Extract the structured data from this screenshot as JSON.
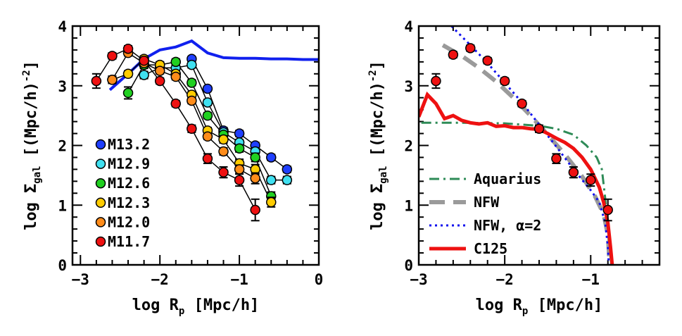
{
  "chart_data": [
    {
      "type": "scatter",
      "xlabel": "log R",
      "xlabel_sub": "p",
      "xlabel_units": "[Mpc/h]",
      "ylabel": "log Σ",
      "ylabel_sub": "gal",
      "ylabel_units": "[(Mpc/h)",
      "ylabel_sup": "-2",
      "ylabel_close": "]",
      "xlim": [
        -3.1,
        0
      ],
      "ylim": [
        0,
        4
      ],
      "xticks": [
        -3,
        -2,
        -1,
        0
      ],
      "xtick_labels": [
        "−3",
        "−2",
        "−1",
        "0"
      ],
      "yticks": [
        0,
        1,
        2,
        3,
        4
      ],
      "ytick_labels": [
        "0",
        "1",
        "2",
        "3",
        "4"
      ],
      "legend_position": "bottom-left",
      "series": [
        {
          "name": "M13.2",
          "color": "#1f3fff",
          "x": [
            -1.6,
            -1.4,
            -1.2,
            -1.0,
            -0.8,
            -0.6,
            -0.4
          ],
          "y": [
            3.45,
            2.95,
            2.25,
            2.2,
            2.0,
            1.8,
            1.6
          ],
          "err": [
            0.04,
            0.04,
            0.05,
            0.05,
            0.05,
            0.05,
            0.05
          ]
        },
        {
          "name": "M12.9",
          "color": "#40e0f0",
          "x": [
            -2.2,
            -2.0,
            -1.8,
            -1.6,
            -1.4,
            -1.2,
            -1.0,
            -0.8,
            -0.6,
            -0.4
          ],
          "y": [
            3.18,
            3.3,
            3.3,
            3.35,
            2.72,
            2.22,
            2.05,
            1.9,
            1.42,
            1.42
          ],
          "err": [
            0.06,
            0.05,
            0.05,
            0.05,
            0.05,
            0.05,
            0.05,
            0.06,
            0.06,
            0.06
          ]
        },
        {
          "name": "M12.6",
          "color": "#20d020",
          "x": [
            -2.4,
            -2.2,
            -2.0,
            -1.8,
            -1.6,
            -1.4,
            -1.2,
            -1.0,
            -0.8,
            -0.6
          ],
          "y": [
            2.88,
            3.35,
            3.35,
            3.4,
            3.05,
            2.5,
            2.18,
            1.95,
            1.8,
            1.15
          ],
          "err": [
            0.1,
            0.06,
            0.05,
            0.05,
            0.05,
            0.05,
            0.05,
            0.06,
            0.07,
            0.07
          ]
        },
        {
          "name": "M12.3",
          "color": "#ffcc00",
          "x": [
            -2.6,
            -2.4,
            -2.2,
            -2.0,
            -1.8,
            -1.6,
            -1.4,
            -1.2,
            -1.0,
            -0.8,
            -0.6
          ],
          "y": [
            3.1,
            3.2,
            3.45,
            3.35,
            3.2,
            2.85,
            2.25,
            2.1,
            1.7,
            1.6,
            1.05
          ],
          "err": [
            0.06,
            0.05,
            0.05,
            0.05,
            0.05,
            0.05,
            0.05,
            0.06,
            0.07,
            0.08,
            0.08
          ]
        },
        {
          "name": "M12.0",
          "color": "#ff8c1a",
          "x": [
            -2.6,
            -2.4,
            -2.2,
            -2.0,
            -1.8,
            -1.6,
            -1.4,
            -1.2,
            -1.0,
            -0.8
          ],
          "y": [
            3.1,
            3.55,
            3.38,
            3.25,
            3.15,
            2.75,
            2.15,
            1.9,
            1.6,
            1.45
          ],
          "err": [
            0.06,
            0.05,
            0.05,
            0.05,
            0.05,
            0.05,
            0.05,
            0.06,
            0.07,
            0.09
          ]
        },
        {
          "name": "M11.7",
          "color": "#ee1111",
          "x": [
            -2.8,
            -2.6,
            -2.4,
            -2.2,
            -2.0,
            -1.8,
            -1.6,
            -1.4,
            -1.2,
            -1.0,
            -0.8
          ],
          "y": [
            3.08,
            3.5,
            3.62,
            3.42,
            3.08,
            2.7,
            2.28,
            1.78,
            1.55,
            1.42,
            0.92
          ],
          "err": [
            0.12,
            0.05,
            0.05,
            0.05,
            0.05,
            0.05,
            0.06,
            0.08,
            0.09,
            0.1,
            0.18
          ]
        }
      ],
      "lines": [
        {
          "color": "#1020ee",
          "x": [
            -2.63,
            -2.4,
            -2.2,
            -2.0,
            -1.8,
            -1.6,
            -1.4,
            -1.2,
            -1.0,
            -0.8,
            -0.6,
            -0.4,
            -0.2,
            0.0
          ],
          "y": [
            2.93,
            3.2,
            3.45,
            3.6,
            3.65,
            3.75,
            3.55,
            3.47,
            3.46,
            3.46,
            3.45,
            3.45,
            3.44,
            3.44
          ]
        }
      ]
    },
    {
      "type": "scatter",
      "xlabel": "log R",
      "xlabel_sub": "p",
      "xlabel_units": "[Mpc/h]",
      "ylabel": "log Σ",
      "ylabel_sub": "gal",
      "ylabel_units": "[(Mpc/h)",
      "ylabel_sup": "-2",
      "ylabel_close": "]",
      "xlim": [
        -3.0,
        -0.2
      ],
      "ylim": [
        0,
        4
      ],
      "xticks": [
        -3,
        -2,
        -1
      ],
      "xtick_labels": [
        "−3",
        "−2",
        "−1"
      ],
      "yticks": [
        0,
        1,
        2,
        3,
        4
      ],
      "ytick_labels": [
        "0",
        "1",
        "2",
        "3",
        "4"
      ],
      "legend_position": "bottom-left",
      "points": {
        "color": "#ee1111",
        "x": [
          -2.8,
          -2.6,
          -2.4,
          -2.2,
          -2.0,
          -1.8,
          -1.6,
          -1.4,
          -1.2,
          -1.0,
          -0.8
        ],
        "y": [
          3.08,
          3.52,
          3.63,
          3.42,
          3.08,
          2.7,
          2.28,
          1.78,
          1.55,
          1.42,
          0.92
        ],
        "err": [
          0.12,
          0.05,
          0.05,
          0.05,
          0.05,
          0.05,
          0.06,
          0.08,
          0.09,
          0.1,
          0.18
        ]
      },
      "series": [
        {
          "name": "Aquarius",
          "color": "#2e8b57",
          "dash": "14 6 3 6",
          "width": 3,
          "x": [
            -2.97,
            -2.5,
            -2.0,
            -1.6,
            -1.4,
            -1.2,
            -1.05,
            -0.93,
            -0.87,
            -0.83,
            -0.79,
            -0.76
          ],
          "y": [
            2.38,
            2.38,
            2.37,
            2.33,
            2.28,
            2.18,
            2.0,
            1.8,
            1.6,
            1.1,
            0.4,
            0.0
          ]
        },
        {
          "name": "NFW",
          "color": "#9a9a9a",
          "dash": "22 12",
          "width": 6,
          "x": [
            -2.72,
            -2.5,
            -2.3,
            -2.1,
            -1.9,
            -1.7,
            -1.5,
            -1.3,
            -1.1,
            -0.95,
            -0.85,
            -0.8,
            -0.78
          ],
          "y": [
            3.68,
            3.5,
            3.3,
            3.07,
            2.8,
            2.5,
            2.18,
            1.85,
            1.48,
            1.15,
            0.85,
            0.5,
            0.0
          ]
        },
        {
          "name": "NFW, α=2",
          "color": "#1010ee",
          "dash": "3 5",
          "width": 3,
          "x": [
            -2.62,
            -2.4,
            -2.2,
            -2.0,
            -1.8,
            -1.6,
            -1.4,
            -1.2,
            -1.0,
            -0.9,
            -0.83,
            -0.8,
            -0.79
          ],
          "y": [
            4.0,
            3.68,
            3.38,
            3.05,
            2.72,
            2.35,
            1.98,
            1.6,
            1.25,
            1.05,
            0.7,
            0.3,
            0.0
          ]
        },
        {
          "name": "C125",
          "color": "#ee1111",
          "dash": "",
          "width": 5,
          "x": [
            -3.0,
            -2.9,
            -2.8,
            -2.7,
            -2.6,
            -2.5,
            -2.4,
            -2.3,
            -2.2,
            -2.1,
            -2.0,
            -1.9,
            -1.8,
            -1.7,
            -1.6,
            -1.5,
            -1.4,
            -1.3,
            -1.2,
            -1.1,
            -1.0,
            -0.9,
            -0.85,
            -0.8,
            -0.77,
            -0.75
          ],
          "y": [
            2.48,
            2.85,
            2.7,
            2.45,
            2.5,
            2.42,
            2.38,
            2.36,
            2.38,
            2.32,
            2.33,
            2.3,
            2.3,
            2.28,
            2.27,
            2.2,
            2.12,
            2.05,
            1.95,
            1.8,
            1.6,
            1.3,
            1.05,
            0.7,
            0.3,
            0.0
          ]
        }
      ]
    }
  ]
}
